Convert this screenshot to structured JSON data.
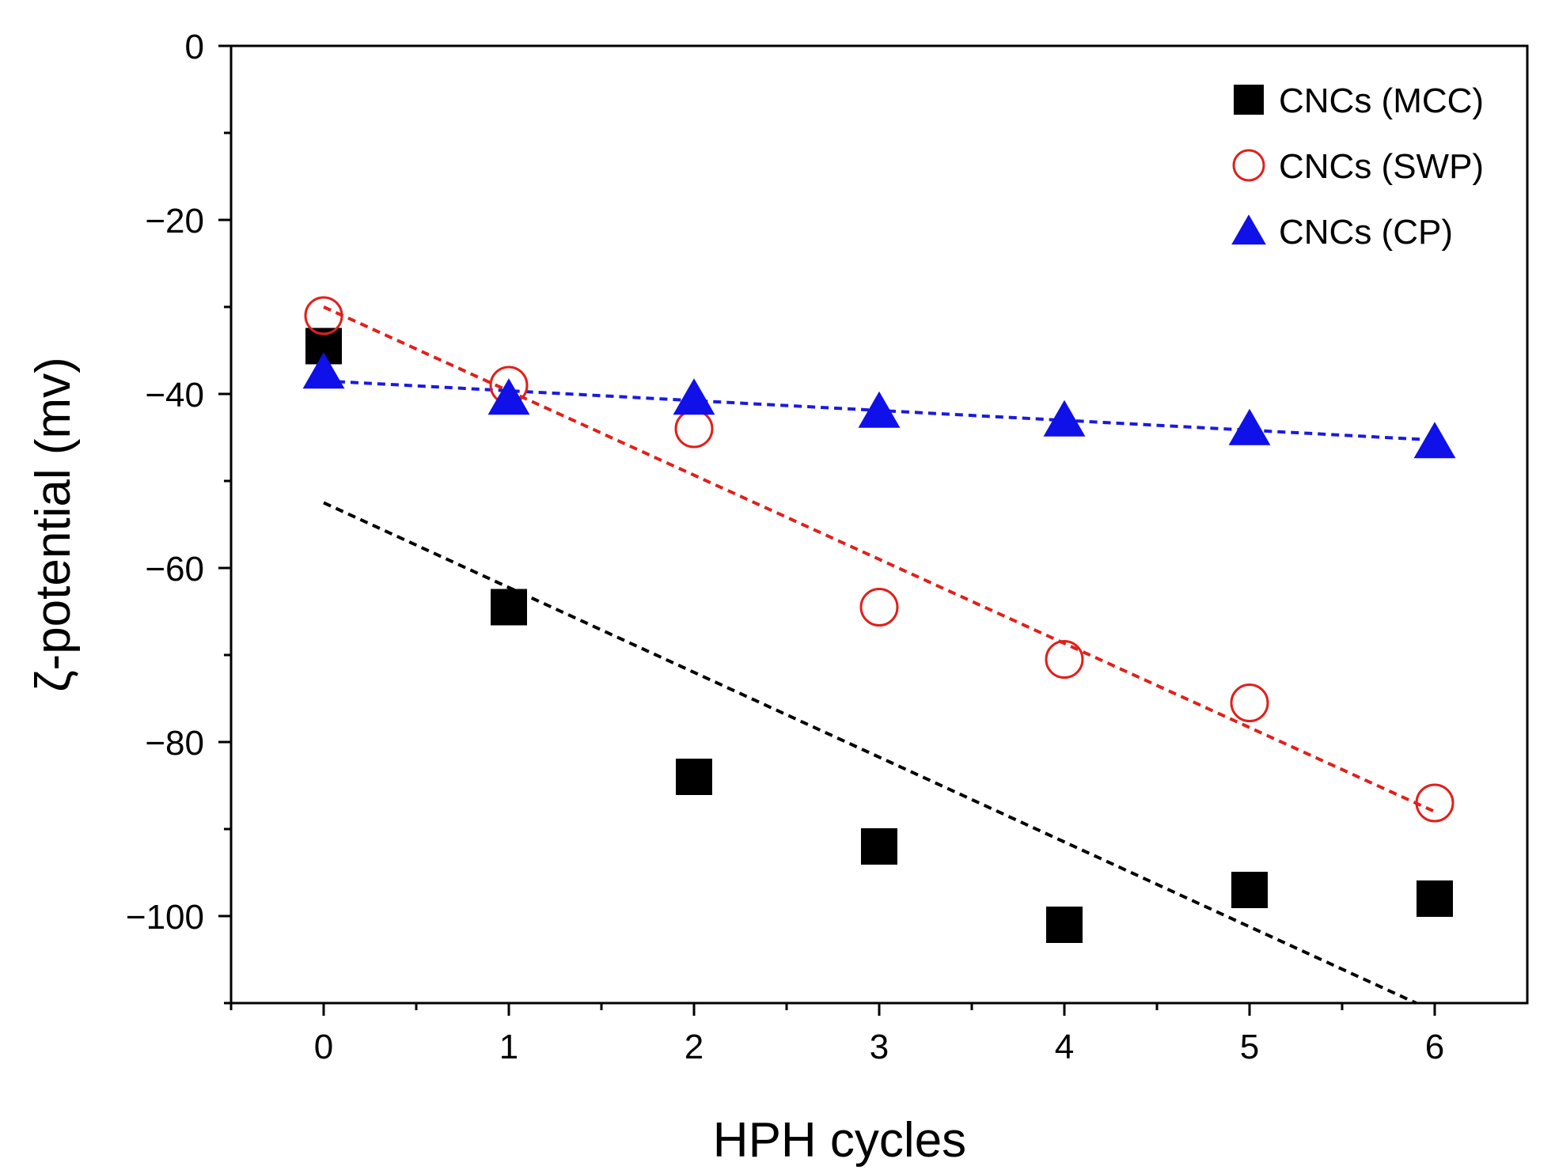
{
  "chart_data": {
    "type": "scatter",
    "title": "",
    "xlabel": "HPH cycles",
    "ylabel": "ζ-potential (mv)",
    "xlim": [
      -0.5,
      6.5
    ],
    "ylim": [
      -110,
      0
    ],
    "xticks": [
      0,
      1,
      2,
      3,
      4,
      5,
      6
    ],
    "yticks": [
      0,
      -20,
      -40,
      -60,
      -80,
      -100
    ],
    "ytick_labels": [
      "0",
      "−20",
      "−40",
      "−60",
      "−80",
      "−100"
    ],
    "grid": false,
    "legend_position": "top-right",
    "series": [
      {
        "name": "CNCs (MCC)",
        "marker": "filled-square",
        "color": "#000000",
        "x": [
          0,
          1,
          2,
          3,
          4,
          5,
          6
        ],
        "y": [
          -34.5,
          -64.5,
          -84,
          -92,
          -101,
          -97,
          -98
        ],
        "fit": {
          "x": [
            0,
            5.9
          ],
          "y": [
            -52.5,
            -110
          ]
        }
      },
      {
        "name": "CNCs (SWP)",
        "marker": "open-circle",
        "color": "#e0201b",
        "x": [
          0,
          1,
          2,
          3,
          4,
          5,
          6
        ],
        "y": [
          -31,
          -39,
          -44,
          -64.5,
          -70.5,
          -75.5,
          -87
        ],
        "fit": {
          "x": [
            0,
            6
          ],
          "y": [
            -30,
            -88
          ]
        }
      },
      {
        "name": "CNCs (CP)",
        "marker": "filled-triangle",
        "color": "#1010e8",
        "x": [
          0,
          1,
          2,
          3,
          4,
          5,
          6
        ],
        "y": [
          -37.5,
          -40.5,
          -40.5,
          -42,
          -43,
          -44,
          -45.5
        ],
        "fit": {
          "x": [
            0,
            6
          ],
          "y": [
            -38.5,
            -45.3
          ]
        }
      }
    ]
  }
}
